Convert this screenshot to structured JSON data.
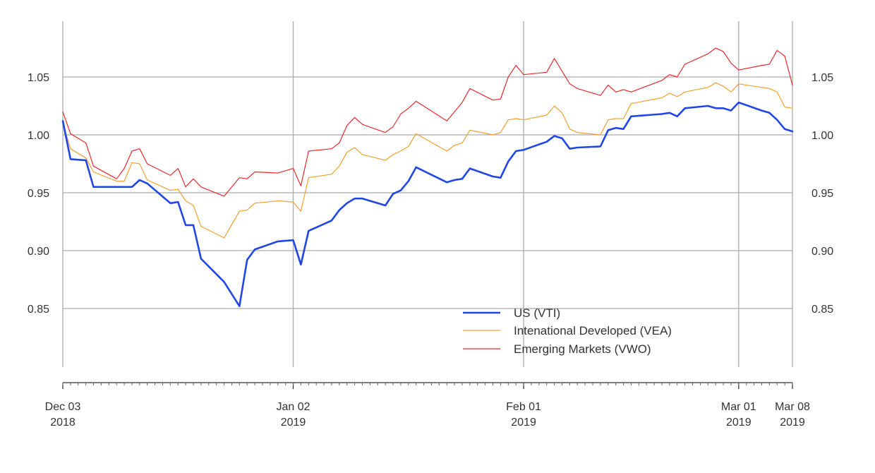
{
  "chart_data": {
    "type": "line",
    "title": "",
    "xlabel": "",
    "ylabel": "",
    "ylim": [
      0.8,
      1.1
    ],
    "xlim": [
      "2018-12-03",
      "2019-03-08"
    ],
    "y_ticks": [
      {
        "value": 0.85,
        "label": "0.85"
      },
      {
        "value": 0.9,
        "label": "0.90"
      },
      {
        "value": 0.95,
        "label": "0.95"
      },
      {
        "value": 1.0,
        "label": "1.00"
      },
      {
        "value": 1.05,
        "label": "1.05"
      }
    ],
    "x_ticks": [
      {
        "date": "2018-12-03",
        "line1": "Dec 03",
        "line2": "2018"
      },
      {
        "date": "2019-01-02",
        "line1": "Jan 02",
        "line2": "2019"
      },
      {
        "date": "2019-02-01",
        "line1": "Feb 01",
        "line2": "2019"
      },
      {
        "date": "2019-03-01",
        "line1": "Mar 01",
        "line2": "2019"
      },
      {
        "date": "2019-03-08",
        "line1": "Mar 08",
        "line2": "2019"
      }
    ],
    "grid": true,
    "y_axis_both_sides": true,
    "legend_position": "bottom-right",
    "series": [
      {
        "name": "US (VTI)",
        "color": "#2146e6",
        "points": [
          [
            "2018-12-03",
            1.012
          ],
          [
            "2018-12-04",
            0.979
          ],
          [
            "2018-12-06",
            0.978
          ],
          [
            "2018-12-07",
            0.955
          ],
          [
            "2018-12-10",
            0.955
          ],
          [
            "2018-12-11",
            0.955
          ],
          [
            "2018-12-12",
            0.955
          ],
          [
            "2018-12-13",
            0.961
          ],
          [
            "2018-12-14",
            0.958
          ],
          [
            "2018-12-17",
            0.941
          ],
          [
            "2018-12-18",
            0.942
          ],
          [
            "2018-12-19",
            0.922
          ],
          [
            "2018-12-20",
            0.922
          ],
          [
            "2018-12-21",
            0.893
          ],
          [
            "2018-12-24",
            0.873
          ],
          [
            "2018-12-26",
            0.852
          ],
          [
            "2018-12-27",
            0.892
          ],
          [
            "2018-12-28",
            0.901
          ],
          [
            "2018-12-31",
            0.908
          ],
          [
            "2019-01-02",
            0.909
          ],
          [
            "2019-01-03",
            0.888
          ],
          [
            "2019-01-04",
            0.917
          ],
          [
            "2019-01-07",
            0.926
          ],
          [
            "2019-01-08",
            0.935
          ],
          [
            "2019-01-09",
            0.941
          ],
          [
            "2019-01-10",
            0.945
          ],
          [
            "2019-01-11",
            0.945
          ],
          [
            "2019-01-14",
            0.939
          ],
          [
            "2019-01-15",
            0.949
          ],
          [
            "2019-01-16",
            0.952
          ],
          [
            "2019-01-17",
            0.96
          ],
          [
            "2019-01-18",
            0.972
          ],
          [
            "2019-01-22",
            0.959
          ],
          [
            "2019-01-23",
            0.961
          ],
          [
            "2019-01-24",
            0.962
          ],
          [
            "2019-01-25",
            0.971
          ],
          [
            "2019-01-28",
            0.964
          ],
          [
            "2019-01-29",
            0.963
          ],
          [
            "2019-01-30",
            0.977
          ],
          [
            "2019-01-31",
            0.986
          ],
          [
            "2019-02-01",
            0.987
          ],
          [
            "2019-02-04",
            0.994
          ],
          [
            "2019-02-05",
            0.999
          ],
          [
            "2019-02-06",
            0.997
          ],
          [
            "2019-02-07",
            0.988
          ],
          [
            "2019-02-08",
            0.989
          ],
          [
            "2019-02-11",
            0.99
          ],
          [
            "2019-02-12",
            1.004
          ],
          [
            "2019-02-13",
            1.006
          ],
          [
            "2019-02-14",
            1.005
          ],
          [
            "2019-02-15",
            1.016
          ],
          [
            "2019-02-19",
            1.018
          ],
          [
            "2019-02-20",
            1.019
          ],
          [
            "2019-02-21",
            1.016
          ],
          [
            "2019-02-22",
            1.023
          ],
          [
            "2019-02-25",
            1.025
          ],
          [
            "2019-02-26",
            1.023
          ],
          [
            "2019-02-27",
            1.023
          ],
          [
            "2019-02-28",
            1.021
          ],
          [
            "2019-03-01",
            1.028
          ],
          [
            "2019-03-04",
            1.021
          ],
          [
            "2019-03-05",
            1.019
          ],
          [
            "2019-03-06",
            1.013
          ],
          [
            "2019-03-07",
            1.005
          ],
          [
            "2019-03-08",
            1.003
          ]
        ]
      },
      {
        "name": "Intenational Developed (VEA)",
        "color": "#f0a030",
        "points": [
          [
            "2018-12-03",
            1.01
          ],
          [
            "2018-12-04",
            0.988
          ],
          [
            "2018-12-06",
            0.98
          ],
          [
            "2018-12-07",
            0.968
          ],
          [
            "2018-12-10",
            0.96
          ],
          [
            "2018-12-11",
            0.96
          ],
          [
            "2018-12-12",
            0.976
          ],
          [
            "2018-12-13",
            0.975
          ],
          [
            "2018-12-14",
            0.961
          ],
          [
            "2018-12-17",
            0.952
          ],
          [
            "2018-12-18",
            0.953
          ],
          [
            "2018-12-19",
            0.943
          ],
          [
            "2018-12-20",
            0.939
          ],
          [
            "2018-12-21",
            0.921
          ],
          [
            "2018-12-24",
            0.911
          ],
          [
            "2018-12-26",
            0.934
          ],
          [
            "2018-12-27",
            0.935
          ],
          [
            "2018-12-28",
            0.941
          ],
          [
            "2018-12-31",
            0.943
          ],
          [
            "2019-01-02",
            0.942
          ],
          [
            "2019-01-03",
            0.934
          ],
          [
            "2019-01-04",
            0.963
          ],
          [
            "2019-01-07",
            0.966
          ],
          [
            "2019-01-08",
            0.973
          ],
          [
            "2019-01-09",
            0.985
          ],
          [
            "2019-01-10",
            0.989
          ],
          [
            "2019-01-11",
            0.983
          ],
          [
            "2019-01-14",
            0.978
          ],
          [
            "2019-01-15",
            0.983
          ],
          [
            "2019-01-16",
            0.986
          ],
          [
            "2019-01-17",
            0.99
          ],
          [
            "2019-01-18",
            1.001
          ],
          [
            "2019-01-22",
            0.986
          ],
          [
            "2019-01-23",
            0.991
          ],
          [
            "2019-01-24",
            0.993
          ],
          [
            "2019-01-25",
            1.004
          ],
          [
            "2019-01-28",
            1.0
          ],
          [
            "2019-01-29",
            1.002
          ],
          [
            "2019-01-30",
            1.013
          ],
          [
            "2019-01-31",
            1.014
          ],
          [
            "2019-02-01",
            1.013
          ],
          [
            "2019-02-04",
            1.017
          ],
          [
            "2019-02-05",
            1.025
          ],
          [
            "2019-02-06",
            1.019
          ],
          [
            "2019-02-07",
            1.005
          ],
          [
            "2019-02-08",
            1.002
          ],
          [
            "2019-02-11",
            1.0
          ],
          [
            "2019-02-12",
            1.013
          ],
          [
            "2019-02-13",
            1.014
          ],
          [
            "2019-02-14",
            1.014
          ],
          [
            "2019-02-15",
            1.027
          ],
          [
            "2019-02-19",
            1.032
          ],
          [
            "2019-02-20",
            1.036
          ],
          [
            "2019-02-21",
            1.033
          ],
          [
            "2019-02-22",
            1.037
          ],
          [
            "2019-02-25",
            1.041
          ],
          [
            "2019-02-26",
            1.045
          ],
          [
            "2019-02-27",
            1.042
          ],
          [
            "2019-02-28",
            1.037
          ],
          [
            "2019-03-01",
            1.044
          ],
          [
            "2019-03-04",
            1.041
          ],
          [
            "2019-03-05",
            1.04
          ],
          [
            "2019-03-06",
            1.037
          ],
          [
            "2019-03-07",
            1.024
          ],
          [
            "2019-03-08",
            1.023
          ]
        ]
      },
      {
        "name": "Emerging Markets (VWO)",
        "color": "#e8292e",
        "points": [
          [
            "2018-12-03",
            1.02
          ],
          [
            "2018-12-04",
            1.001
          ],
          [
            "2018-12-06",
            0.993
          ],
          [
            "2018-12-07",
            0.973
          ],
          [
            "2018-12-10",
            0.962
          ],
          [
            "2018-12-11",
            0.971
          ],
          [
            "2018-12-12",
            0.986
          ],
          [
            "2018-12-13",
            0.988
          ],
          [
            "2018-12-14",
            0.975
          ],
          [
            "2018-12-17",
            0.965
          ],
          [
            "2018-12-18",
            0.971
          ],
          [
            "2018-12-19",
            0.955
          ],
          [
            "2018-12-20",
            0.962
          ],
          [
            "2018-12-21",
            0.955
          ],
          [
            "2018-12-24",
            0.947
          ],
          [
            "2018-12-26",
            0.963
          ],
          [
            "2018-12-27",
            0.962
          ],
          [
            "2018-12-28",
            0.968
          ],
          [
            "2018-12-31",
            0.967
          ],
          [
            "2019-01-02",
            0.971
          ],
          [
            "2019-01-03",
            0.956
          ],
          [
            "2019-01-04",
            0.986
          ],
          [
            "2019-01-07",
            0.988
          ],
          [
            "2019-01-08",
            0.993
          ],
          [
            "2019-01-09",
            1.008
          ],
          [
            "2019-01-10",
            1.015
          ],
          [
            "2019-01-11",
            1.009
          ],
          [
            "2019-01-14",
            1.002
          ],
          [
            "2019-01-15",
            1.007
          ],
          [
            "2019-01-16",
            1.018
          ],
          [
            "2019-01-17",
            1.023
          ],
          [
            "2019-01-18",
            1.029
          ],
          [
            "2019-01-22",
            1.012
          ],
          [
            "2019-01-23",
            1.02
          ],
          [
            "2019-01-24",
            1.028
          ],
          [
            "2019-01-25",
            1.04
          ],
          [
            "2019-01-28",
            1.03
          ],
          [
            "2019-01-29",
            1.031
          ],
          [
            "2019-01-30",
            1.05
          ],
          [
            "2019-01-31",
            1.06
          ],
          [
            "2019-02-01",
            1.052
          ],
          [
            "2019-02-04",
            1.054
          ],
          [
            "2019-02-05",
            1.066
          ],
          [
            "2019-02-06",
            1.055
          ],
          [
            "2019-02-07",
            1.044
          ],
          [
            "2019-02-08",
            1.04
          ],
          [
            "2019-02-11",
            1.034
          ],
          [
            "2019-02-12",
            1.043
          ],
          [
            "2019-02-13",
            1.037
          ],
          [
            "2019-02-14",
            1.039
          ],
          [
            "2019-02-15",
            1.037
          ],
          [
            "2019-02-19",
            1.047
          ],
          [
            "2019-02-20",
            1.052
          ],
          [
            "2019-02-21",
            1.05
          ],
          [
            "2019-02-22",
            1.061
          ],
          [
            "2019-02-25",
            1.07
          ],
          [
            "2019-02-26",
            1.075
          ],
          [
            "2019-02-27",
            1.072
          ],
          [
            "2019-02-28",
            1.062
          ],
          [
            "2019-03-01",
            1.056
          ],
          [
            "2019-03-04",
            1.06
          ],
          [
            "2019-03-05",
            1.061
          ],
          [
            "2019-03-06",
            1.073
          ],
          [
            "2019-03-07",
            1.068
          ],
          [
            "2019-03-08",
            1.043
          ]
        ]
      }
    ]
  }
}
